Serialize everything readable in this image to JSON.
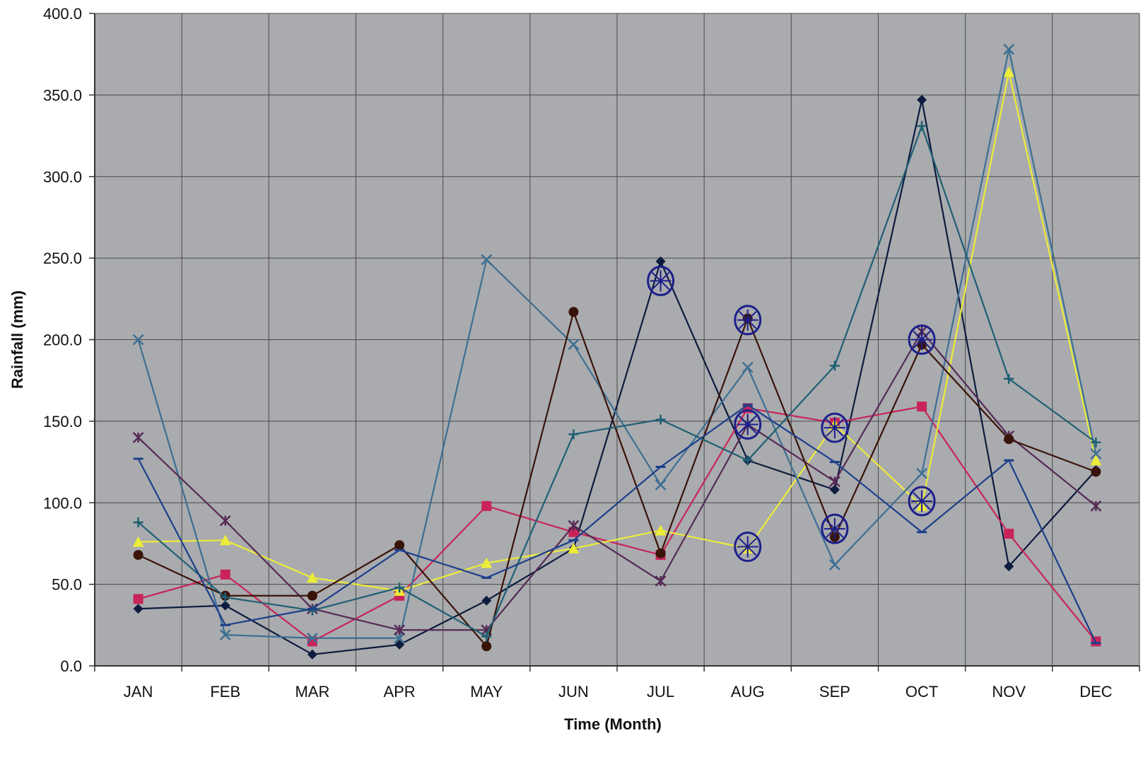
{
  "chart_data": {
    "type": "line",
    "title": "",
    "xlabel": "Time (Month)",
    "ylabel": "Rainfall (mm)",
    "ylim": [
      0,
      400
    ],
    "yticks": [
      "0.0",
      "50.0",
      "100.0",
      "150.0",
      "200.0",
      "250.0",
      "300.0",
      "350.0",
      "400.0"
    ],
    "ytick_values": [
      0,
      50,
      100,
      150,
      200,
      250,
      300,
      350,
      400
    ],
    "categories": [
      "JAN",
      "FEB",
      "MAR",
      "APR",
      "MAY",
      "JUN",
      "JUL",
      "AUG",
      "SEP",
      "OCT",
      "NOV",
      "DEC"
    ],
    "grid": true,
    "legend": "none",
    "colors": {
      "plot_bg": "#a9abae",
      "grid": "#4a4a4a",
      "axis": "#333333",
      "annotation": "#1c1f8a"
    },
    "series": [
      {
        "color": "#0d1b3e",
        "marker": "diamond",
        "values": [
          35,
          37,
          7,
          13,
          40,
          72,
          248,
          126,
          108,
          347,
          61,
          120
        ]
      },
      {
        "color": "#c8245a",
        "marker": "square",
        "values": [
          41,
          56,
          15,
          43,
          98,
          82,
          68,
          158,
          149,
          159,
          81,
          15
        ]
      },
      {
        "color": "#ecec3a",
        "marker": "triangle",
        "values": [
          76,
          77,
          54,
          46,
          63,
          72,
          83,
          72,
          148,
          98,
          364,
          126
        ]
      },
      {
        "color": "#3d6f93",
        "marker": "x",
        "values": [
          200,
          19,
          17,
          17,
          249,
          197,
          111,
          183,
          62,
          118,
          378,
          130
        ]
      },
      {
        "color": "#552a55",
        "marker": "star",
        "values": [
          140,
          89,
          35,
          22,
          22,
          86,
          52,
          148,
          113,
          205,
          141,
          98
        ]
      },
      {
        "color": "#3a1308",
        "marker": "circle",
        "values": [
          68,
          43,
          43,
          74,
          12,
          217,
          69,
          213,
          79,
          197,
          139,
          119
        ]
      },
      {
        "color": "#1f5f73",
        "marker": "plus",
        "values": [
          88,
          42,
          34,
          48,
          18,
          142,
          151,
          126,
          184,
          331,
          176,
          137
        ]
      },
      {
        "color": "#1d3f8a",
        "marker": "dash",
        "values": [
          127,
          25,
          35,
          71,
          54,
          77,
          122,
          160,
          125,
          82,
          126,
          14
        ]
      }
    ],
    "annotations": [
      {
        "type": "hand-drawn-circle",
        "x": "JUL",
        "y": 236
      },
      {
        "type": "hand-drawn-circle",
        "x": "AUG",
        "y": 212
      },
      {
        "type": "hand-drawn-circle",
        "x": "AUG",
        "y": 148
      },
      {
        "type": "hand-drawn-circle",
        "x": "AUG",
        "y": 73
      },
      {
        "type": "hand-drawn-circle",
        "x": "SEP",
        "y": 146
      },
      {
        "type": "hand-drawn-circle",
        "x": "SEP",
        "y": 84
      },
      {
        "type": "hand-drawn-circle",
        "x": "OCT",
        "y": 200
      },
      {
        "type": "hand-drawn-circle",
        "x": "OCT",
        "y": 101
      }
    ]
  }
}
